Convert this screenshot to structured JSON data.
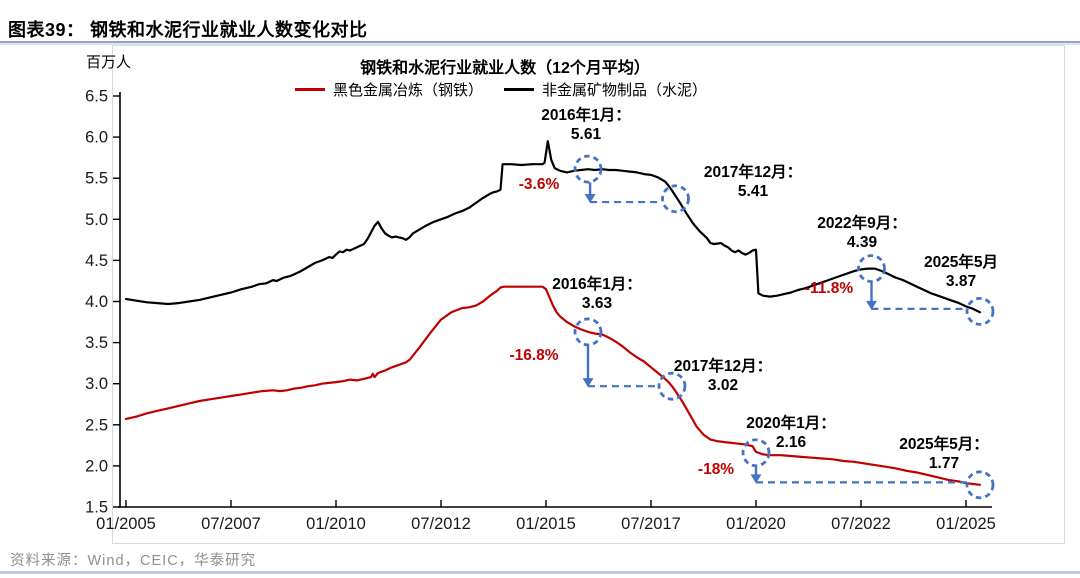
{
  "header": {
    "title": "图表39：  钢铁和水泥行业就业人数变化对比"
  },
  "source": "资料来源：Wind，CEIC，华泰研究",
  "colors": {
    "accent_red": "#c00000",
    "line_black": "#000000",
    "annotation_blue": "#4472c4",
    "source_gray": "#8f8f8f"
  },
  "chart_data": {
    "type": "line",
    "title": "钢铁和水泥行业就业人数（12个月平均）",
    "unit_label": "百万人",
    "ylabel": "百万人",
    "xlabel": "",
    "ylim": [
      1.5,
      6.5
    ],
    "grid": false,
    "legend_position": "top",
    "yticks": [
      "6.5",
      "6.0",
      "5.5",
      "5.0",
      "4.5",
      "4.0",
      "3.5",
      "3.0",
      "2.5",
      "2.0",
      "1.5"
    ],
    "xticks": [
      {
        "m": 0,
        "label": "01/2005"
      },
      {
        "m": 30,
        "label": "07/2007"
      },
      {
        "m": 60,
        "label": "01/2010"
      },
      {
        "m": 90,
        "label": "07/2012"
      },
      {
        "m": 120,
        "label": "01/2015"
      },
      {
        "m": 150,
        "label": "07/2017"
      },
      {
        "m": 180,
        "label": "01/2020"
      },
      {
        "m": 210,
        "label": "07/2022"
      },
      {
        "m": 240,
        "label": "01/2025"
      }
    ],
    "series": [
      {
        "name": "黑色金属冶炼（钢铁）",
        "color": "#c00000",
        "points": [
          [
            0,
            2.57
          ],
          [
            3,
            2.6
          ],
          [
            6,
            2.64
          ],
          [
            9,
            2.67
          ],
          [
            12,
            2.7
          ],
          [
            15,
            2.73
          ],
          [
            18,
            2.76
          ],
          [
            21,
            2.79
          ],
          [
            24,
            2.81
          ],
          [
            27,
            2.83
          ],
          [
            30,
            2.85
          ],
          [
            33,
            2.87
          ],
          [
            36,
            2.89
          ],
          [
            39,
            2.91
          ],
          [
            42,
            2.92
          ],
          [
            44,
            2.91
          ],
          [
            46,
            2.92
          ],
          [
            48,
            2.94
          ],
          [
            50,
            2.95
          ],
          [
            52,
            2.97
          ],
          [
            54,
            2.98
          ],
          [
            56,
            3.0
          ],
          [
            58,
            3.01
          ],
          [
            60,
            3.02
          ],
          [
            62,
            3.03
          ],
          [
            64,
            3.05
          ],
          [
            66,
            3.04
          ],
          [
            68,
            3.06
          ],
          [
            70,
            3.08
          ],
          [
            70.5,
            3.12
          ],
          [
            71,
            3.08
          ],
          [
            72,
            3.13
          ],
          [
            74,
            3.16
          ],
          [
            76,
            3.2
          ],
          [
            78,
            3.23
          ],
          [
            80,
            3.26
          ],
          [
            81,
            3.29
          ],
          [
            84,
            3.45
          ],
          [
            87,
            3.62
          ],
          [
            90,
            3.78
          ],
          [
            93,
            3.87
          ],
          [
            96,
            3.92
          ],
          [
            98,
            3.93
          ],
          [
            100,
            3.95
          ],
          [
            102,
            4.0
          ],
          [
            104,
            4.07
          ],
          [
            106,
            4.13
          ],
          [
            107,
            4.17
          ],
          [
            108,
            4.18
          ],
          [
            112,
            4.18
          ],
          [
            116,
            4.18
          ],
          [
            119,
            4.18
          ],
          [
            120,
            4.15
          ],
          [
            121,
            4.05
          ],
          [
            122,
            3.95
          ],
          [
            123,
            3.87
          ],
          [
            124,
            3.82
          ],
          [
            126,
            3.75
          ],
          [
            128,
            3.7
          ],
          [
            130,
            3.66
          ],
          [
            132,
            3.63
          ],
          [
            134,
            3.61
          ],
          [
            136,
            3.6
          ],
          [
            137,
            3.58
          ],
          [
            138,
            3.56
          ],
          [
            140,
            3.51
          ],
          [
            142,
            3.45
          ],
          [
            144,
            3.38
          ],
          [
            146,
            3.32
          ],
          [
            148,
            3.27
          ],
          [
            150,
            3.2
          ],
          [
            152,
            3.13
          ],
          [
            154,
            3.06
          ],
          [
            155,
            3.02
          ],
          [
            156,
            2.97
          ],
          [
            157,
            2.91
          ],
          [
            159,
            2.78
          ],
          [
            161,
            2.63
          ],
          [
            163,
            2.48
          ],
          [
            165,
            2.38
          ],
          [
            167,
            2.32
          ],
          [
            169,
            2.3
          ],
          [
            171,
            2.29
          ],
          [
            173,
            2.28
          ],
          [
            175,
            2.27
          ],
          [
            177,
            2.26
          ],
          [
            179,
            2.24
          ],
          [
            180,
            2.17
          ],
          [
            182,
            2.14
          ],
          [
            184,
            2.13
          ],
          [
            187,
            2.13
          ],
          [
            190,
            2.12
          ],
          [
            193,
            2.11
          ],
          [
            196,
            2.1
          ],
          [
            199,
            2.09
          ],
          [
            202,
            2.08
          ],
          [
            205,
            2.06
          ],
          [
            208,
            2.05
          ],
          [
            211,
            2.03
          ],
          [
            214,
            2.01
          ],
          [
            217,
            1.99
          ],
          [
            220,
            1.97
          ],
          [
            223,
            1.94
          ],
          [
            226,
            1.92
          ],
          [
            229,
            1.89
          ],
          [
            232,
            1.86
          ],
          [
            235,
            1.83
          ],
          [
            238,
            1.81
          ],
          [
            240,
            1.79
          ],
          [
            242,
            1.78
          ],
          [
            244,
            1.77
          ]
        ]
      },
      {
        "name": "非金属矿物制品（水泥）",
        "color": "#000000",
        "points": [
          [
            0,
            4.03
          ],
          [
            3,
            4.01
          ],
          [
            6,
            3.99
          ],
          [
            9,
            3.98
          ],
          [
            12,
            3.97
          ],
          [
            15,
            3.98
          ],
          [
            18,
            4.0
          ],
          [
            21,
            4.02
          ],
          [
            24,
            4.05
          ],
          [
            27,
            4.08
          ],
          [
            30,
            4.11
          ],
          [
            33,
            4.15
          ],
          [
            36,
            4.18
          ],
          [
            38,
            4.21
          ],
          [
            40,
            4.22
          ],
          [
            42,
            4.26
          ],
          [
            43,
            4.25
          ],
          [
            45,
            4.29
          ],
          [
            47,
            4.31
          ],
          [
            48,
            4.33
          ],
          [
            50,
            4.37
          ],
          [
            52,
            4.42
          ],
          [
            54,
            4.47
          ],
          [
            56,
            4.5
          ],
          [
            58,
            4.54
          ],
          [
            59,
            4.53
          ],
          [
            60,
            4.57
          ],
          [
            61,
            4.61
          ],
          [
            62,
            4.6
          ],
          [
            63,
            4.63
          ],
          [
            64,
            4.62
          ],
          [
            66,
            4.66
          ],
          [
            68,
            4.7
          ],
          [
            69,
            4.76
          ],
          [
            70,
            4.84
          ],
          [
            71,
            4.92
          ],
          [
            72,
            4.97
          ],
          [
            73,
            4.89
          ],
          [
            74,
            4.83
          ],
          [
            75,
            4.8
          ],
          [
            76,
            4.78
          ],
          [
            77,
            4.79
          ],
          [
            78,
            4.78
          ],
          [
            79,
            4.77
          ],
          [
            80,
            4.75
          ],
          [
            81,
            4.78
          ],
          [
            82,
            4.83
          ],
          [
            84,
            4.88
          ],
          [
            86,
            4.93
          ],
          [
            88,
            4.97
          ],
          [
            90,
            5.0
          ],
          [
            92,
            5.03
          ],
          [
            94,
            5.07
          ],
          [
            96,
            5.1
          ],
          [
            98,
            5.14
          ],
          [
            100,
            5.2
          ],
          [
            102,
            5.26
          ],
          [
            104,
            5.31
          ],
          [
            105,
            5.33
          ],
          [
            106,
            5.34
          ],
          [
            107,
            5.36
          ],
          [
            107.6,
            5.67
          ],
          [
            110,
            5.67
          ],
          [
            113,
            5.66
          ],
          [
            116,
            5.67
          ],
          [
            119,
            5.67
          ],
          [
            119.6,
            5.69
          ],
          [
            120.5,
            5.95
          ],
          [
            121.5,
            5.72
          ],
          [
            122.5,
            5.62
          ],
          [
            124,
            5.59
          ],
          [
            126,
            5.57
          ],
          [
            128,
            5.59
          ],
          [
            130,
            5.6
          ],
          [
            132,
            5.61
          ],
          [
            134,
            5.6
          ],
          [
            136,
            5.61
          ],
          [
            138,
            5.6
          ],
          [
            140,
            5.6
          ],
          [
            142,
            5.59
          ],
          [
            144,
            5.58
          ],
          [
            146,
            5.57
          ],
          [
            148,
            5.55
          ],
          [
            150,
            5.54
          ],
          [
            152,
            5.51
          ],
          [
            154,
            5.46
          ],
          [
            155,
            5.41
          ],
          [
            156,
            5.35
          ],
          [
            158,
            5.22
          ],
          [
            160,
            5.08
          ],
          [
            162,
            4.95
          ],
          [
            164,
            4.85
          ],
          [
            166,
            4.77
          ],
          [
            167,
            4.71
          ],
          [
            168,
            4.7
          ],
          [
            170,
            4.71
          ],
          [
            171,
            4.68
          ],
          [
            172,
            4.66
          ],
          [
            173,
            4.62
          ],
          [
            174,
            4.6
          ],
          [
            175,
            4.62
          ],
          [
            176,
            4.59
          ],
          [
            177,
            4.57
          ],
          [
            178,
            4.59
          ],
          [
            179,
            4.62
          ],
          [
            180,
            4.63
          ],
          [
            180.7,
            4.1
          ],
          [
            182,
            4.07
          ],
          [
            184,
            4.06
          ],
          [
            186,
            4.07
          ],
          [
            188,
            4.09
          ],
          [
            190,
            4.11
          ],
          [
            192,
            4.14
          ],
          [
            194,
            4.16
          ],
          [
            196,
            4.19
          ],
          [
            198,
            4.22
          ],
          [
            200,
            4.25
          ],
          [
            202,
            4.28
          ],
          [
            204,
            4.31
          ],
          [
            206,
            4.34
          ],
          [
            208,
            4.37
          ],
          [
            210,
            4.39
          ],
          [
            212,
            4.4
          ],
          [
            214,
            4.4
          ],
          [
            216,
            4.37
          ],
          [
            218,
            4.33
          ],
          [
            220,
            4.29
          ],
          [
            222,
            4.26
          ],
          [
            224,
            4.22
          ],
          [
            226,
            4.18
          ],
          [
            228,
            4.14
          ],
          [
            230,
            4.1
          ],
          [
            232,
            4.07
          ],
          [
            234,
            4.04
          ],
          [
            236,
            4.01
          ],
          [
            238,
            3.98
          ],
          [
            240,
            3.94
          ],
          [
            242,
            3.91
          ],
          [
            244,
            3.87
          ]
        ]
      }
    ],
    "markers": [
      {
        "m": 132,
        "v": 5.61
      },
      {
        "m": 157,
        "v": 5.25
      },
      {
        "m": 213,
        "v": 4.4
      },
      {
        "m": 244,
        "v": 3.88
      },
      {
        "m": 132,
        "v": 3.63
      },
      {
        "m": 156,
        "v": 2.97
      },
      {
        "m": 180,
        "v": 2.16
      },
      {
        "m": 244,
        "v": 1.77
      }
    ],
    "drops": [
      {
        "m": 132.6,
        "from": 5.45,
        "to": 5.21,
        "end": 153.2
      },
      {
        "m": 132.0,
        "from": 3.46,
        "to": 2.97,
        "end": 152.6
      },
      {
        "m": 213.0,
        "from": 4.23,
        "to": 3.91,
        "end": 240.3
      },
      {
        "m": 180.0,
        "from": 1.99,
        "to": 1.8,
        "end": 240.2
      }
    ],
    "callouts": [
      {
        "id": "cement-2016",
        "line1": "2016年1月：",
        "line2": "5.61"
      },
      {
        "id": "cement-2017",
        "line1": "2017年12月：",
        "line2": "5.41"
      },
      {
        "id": "cement-2022",
        "line1": "2022年9月：",
        "line2": "4.39"
      },
      {
        "id": "cement-2025",
        "line1": "2025年5月",
        "line2": "3.87"
      },
      {
        "id": "steel-2016",
        "line1": "2016年1月：",
        "line2": "3.63"
      },
      {
        "id": "steel-2017",
        "line1": "2017年12月：",
        "line2": "3.02"
      },
      {
        "id": "steel-2020",
        "line1": "2020年1月：",
        "line2": "2.16"
      },
      {
        "id": "steel-2025",
        "line1": "2025年5月：",
        "line2": "1.77"
      }
    ],
    "pcts": [
      {
        "id": "cement-2016",
        "text": "-3.6%"
      },
      {
        "id": "steel-2016",
        "text": "-16.8%"
      },
      {
        "id": "cement-2022",
        "text": "-11.8%"
      },
      {
        "id": "steel-2020",
        "text": "-18%"
      }
    ]
  }
}
